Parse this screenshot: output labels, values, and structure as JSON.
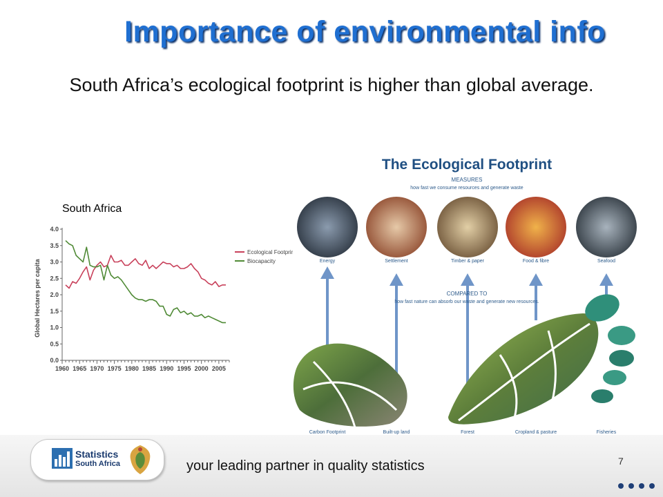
{
  "slide": {
    "title": "Importance of environmental info",
    "subtitle": "South Africa’s ecological footprint is higher than global average.",
    "chart_caption": "South Africa",
    "page_number": "7",
    "tagline": "your leading partner in quality statistics"
  },
  "logo": {
    "line1": "Statistics",
    "line2": "South Africa"
  },
  "colors": {
    "title": "#1f6fd1",
    "footprint_series": "#c8405a",
    "biocapacity_series": "#4f8a35",
    "arrow": "#6f95c8"
  },
  "chart_data": {
    "type": "line",
    "title": "",
    "xlabel": "",
    "ylabel": "Global Hectares per capita",
    "xlim": [
      1960,
      2008
    ],
    "ylim": [
      0,
      4.0
    ],
    "x_ticks": [
      1960,
      1965,
      1970,
      1975,
      1980,
      1985,
      1990,
      1995,
      2000,
      2005
    ],
    "y_ticks": [
      "0.0",
      "0.5",
      "1.0",
      "1.5",
      "2.0",
      "2.5",
      "3.0",
      "3.5",
      "4.0"
    ],
    "grid": false,
    "legend_position": "top-right",
    "x": [
      1961,
      1962,
      1963,
      1964,
      1965,
      1966,
      1967,
      1968,
      1969,
      1970,
      1971,
      1972,
      1973,
      1974,
      1975,
      1976,
      1977,
      1978,
      1979,
      1980,
      1981,
      1982,
      1983,
      1984,
      1985,
      1986,
      1987,
      1988,
      1989,
      1990,
      1991,
      1992,
      1993,
      1994,
      1995,
      1996,
      1997,
      1998,
      1999,
      2000,
      2001,
      2002,
      2003,
      2004,
      2005,
      2006,
      2007
    ],
    "series": [
      {
        "name": "Ecological Footprint",
        "color": "#c8405a",
        "values": [
          2.3,
          2.2,
          2.4,
          2.35,
          2.5,
          2.7,
          2.85,
          2.45,
          2.75,
          2.9,
          3.0,
          2.85,
          2.9,
          3.2,
          3.0,
          3.0,
          3.05,
          2.9,
          2.9,
          3.0,
          3.1,
          2.95,
          2.9,
          3.05,
          2.8,
          2.9,
          2.8,
          2.9,
          3.0,
          2.95,
          2.95,
          2.85,
          2.9,
          2.8,
          2.8,
          2.85,
          2.95,
          2.8,
          2.7,
          2.5,
          2.45,
          2.35,
          2.3,
          2.4,
          2.25,
          2.3,
          2.3
        ]
      },
      {
        "name": "Biocapacity",
        "color": "#4f8a35",
        "values": [
          3.65,
          3.55,
          3.5,
          3.2,
          3.1,
          3.0,
          3.45,
          2.9,
          2.85,
          2.85,
          2.9,
          2.45,
          2.9,
          2.6,
          2.5,
          2.55,
          2.45,
          2.3,
          2.15,
          2.0,
          1.9,
          1.85,
          1.85,
          1.8,
          1.85,
          1.85,
          1.8,
          1.65,
          1.65,
          1.4,
          1.35,
          1.55,
          1.6,
          1.45,
          1.5,
          1.4,
          1.45,
          1.35,
          1.35,
          1.4,
          1.3,
          1.35,
          1.3,
          1.25,
          1.2,
          1.15,
          1.15
        ]
      }
    ]
  },
  "graphic": {
    "title": "The Ecological Footprint",
    "measures_label": "MEASURES",
    "measures_text": "how fast we consume resources and generate waste",
    "compared_label": "COMPARED TO",
    "compared_text": "how fast nature can absorb our waste and generate new resources.",
    "top_labels": [
      "Energy",
      "Settlement",
      "Timber & paper",
      "Food & fibre",
      "Seafood"
    ],
    "bottom_labels": [
      "Carbon Footprint",
      "Built-up land",
      "Forest",
      "Cropland & pasture",
      "Fisheries"
    ]
  }
}
